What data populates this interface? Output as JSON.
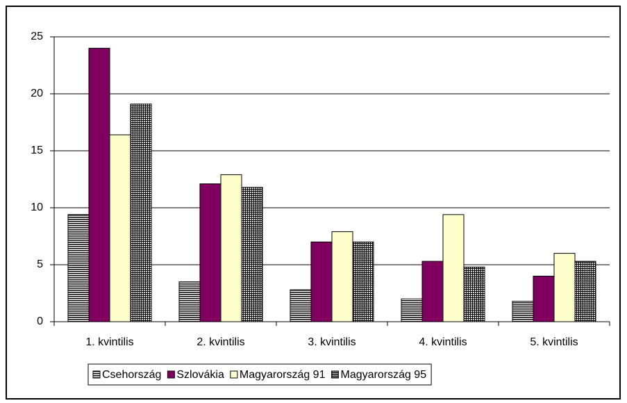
{
  "chart_data": {
    "type": "bar",
    "categories": [
      "1. kvintilis",
      "2. kvintilis",
      "3. kvintilis",
      "4. kvintilis",
      "5. kvintilis"
    ],
    "series": [
      {
        "name": "Csehország",
        "color": "#ffffff",
        "pattern": "horizontal",
        "values": [
          9.4,
          3.5,
          2.8,
          2.0,
          1.8
        ]
      },
      {
        "name": "Szlovákia",
        "color": "#800060",
        "values": [
          24.0,
          12.1,
          7.0,
          5.3,
          4.0
        ]
      },
      {
        "name": "Magyarország 91",
        "color": "#ffffcc",
        "values": [
          16.4,
          12.9,
          7.9,
          9.4,
          6.0
        ]
      },
      {
        "name": "Magyarország 95",
        "color": "#ffffff",
        "pattern": "grid",
        "values": [
          19.1,
          11.8,
          7.0,
          4.8,
          5.3
        ]
      }
    ],
    "ylim": [
      0,
      25
    ],
    "yticks": [
      0,
      5,
      10,
      15,
      20,
      25
    ],
    "grid": true,
    "legend": "bottom"
  }
}
